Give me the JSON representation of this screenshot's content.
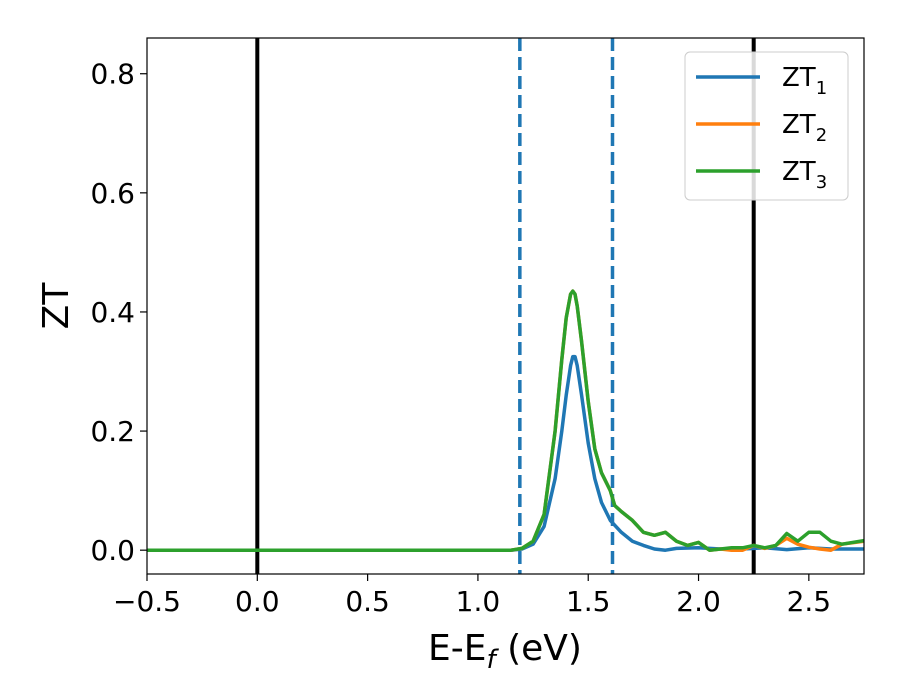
{
  "chart_data": {
    "type": "line",
    "xlabel": "E-E_f (eV)",
    "ylabel": "ZT",
    "xlim": [
      -0.5,
      2.75
    ],
    "ylim": [
      -0.04,
      0.86
    ],
    "x_ticks": [
      -0.5,
      0.0,
      0.5,
      1.0,
      1.5,
      2.0,
      2.5
    ],
    "x_tick_labels": [
      "−0.5",
      "0.0",
      "0.5",
      "1.0",
      "1.5",
      "2.0",
      "2.5"
    ],
    "y_ticks": [
      0.0,
      0.2,
      0.4,
      0.6,
      0.8
    ],
    "y_tick_labels": [
      "0.0",
      "0.2",
      "0.4",
      "0.6",
      "0.8"
    ],
    "grid": false,
    "legend_position": "top-right",
    "vlines": [
      {
        "x": 0.0,
        "style": "solid",
        "color": "#000000"
      },
      {
        "x": 2.25,
        "style": "solid",
        "color": "#000000"
      },
      {
        "x": 1.19,
        "style": "dashed",
        "color": "#1f77b4"
      },
      {
        "x": 1.61,
        "style": "dashed",
        "color": "#1f77b4"
      }
    ],
    "series": [
      {
        "name": "ZT_1",
        "label_main": "ZT",
        "label_sub": "1",
        "color": "#1f77b4",
        "x": [
          -0.5,
          0.0,
          0.5,
          1.0,
          1.15,
          1.2,
          1.25,
          1.3,
          1.35,
          1.38,
          1.4,
          1.42,
          1.43,
          1.44,
          1.45,
          1.47,
          1.5,
          1.53,
          1.56,
          1.6,
          1.65,
          1.7,
          1.75,
          1.8,
          1.85,
          1.9,
          2.0,
          2.1,
          2.2,
          2.3,
          2.4,
          2.5,
          2.6,
          2.75
        ],
        "y": [
          0,
          0,
          0,
          0,
          0.0,
          0.002,
          0.01,
          0.04,
          0.12,
          0.2,
          0.26,
          0.31,
          0.325,
          0.325,
          0.31,
          0.26,
          0.18,
          0.12,
          0.08,
          0.05,
          0.03,
          0.015,
          0.008,
          0.002,
          0.0,
          0.003,
          0.004,
          0.002,
          0.002,
          0.004,
          0.001,
          0.004,
          0.002,
          0.002
        ]
      },
      {
        "name": "ZT_2",
        "label_main": "ZT",
        "label_sub": "2",
        "color": "#ff7f0e",
        "x": [
          -0.5,
          0.0,
          0.5,
          1.0,
          1.15,
          1.2,
          1.25,
          1.3,
          1.35,
          1.38,
          1.4,
          1.42,
          1.43,
          1.44,
          1.45,
          1.47,
          1.5,
          1.53,
          1.56,
          1.6,
          1.62,
          1.65,
          1.7,
          1.75,
          1.8,
          1.85,
          1.9,
          1.95,
          2.0,
          2.05,
          2.1,
          2.15,
          2.2,
          2.25,
          2.3,
          2.35,
          2.4,
          2.45,
          2.5,
          2.55,
          2.6,
          2.65,
          2.75
        ],
        "y": [
          0,
          0,
          0,
          0,
          0.0,
          0.003,
          0.015,
          0.06,
          0.2,
          0.32,
          0.39,
          0.43,
          0.435,
          0.43,
          0.41,
          0.35,
          0.25,
          0.17,
          0.13,
          0.1,
          0.075,
          0.065,
          0.05,
          0.03,
          0.025,
          0.03,
          0.015,
          0.008,
          0.013,
          0.0,
          0.002,
          0.0,
          0.0,
          0.008,
          0.003,
          0.008,
          0.02,
          0.01,
          0.005,
          0.002,
          0.0,
          0.01,
          0.015
        ]
      },
      {
        "name": "ZT_3",
        "label_main": "ZT",
        "label_sub": "3",
        "color": "#2ca02c",
        "x": [
          -0.5,
          0.0,
          0.5,
          1.0,
          1.15,
          1.2,
          1.25,
          1.3,
          1.35,
          1.38,
          1.4,
          1.42,
          1.43,
          1.44,
          1.45,
          1.47,
          1.5,
          1.53,
          1.56,
          1.6,
          1.62,
          1.65,
          1.7,
          1.75,
          1.8,
          1.85,
          1.9,
          1.95,
          2.0,
          2.05,
          2.1,
          2.15,
          2.2,
          2.25,
          2.3,
          2.35,
          2.4,
          2.45,
          2.5,
          2.55,
          2.6,
          2.65,
          2.75
        ],
        "y": [
          0,
          0,
          0,
          0,
          0.0,
          0.003,
          0.015,
          0.06,
          0.2,
          0.32,
          0.39,
          0.43,
          0.435,
          0.43,
          0.41,
          0.35,
          0.25,
          0.17,
          0.13,
          0.1,
          0.075,
          0.065,
          0.05,
          0.03,
          0.025,
          0.03,
          0.015,
          0.008,
          0.013,
          0.0,
          0.002,
          0.004,
          0.004,
          0.008,
          0.004,
          0.008,
          0.028,
          0.015,
          0.03,
          0.03,
          0.015,
          0.01,
          0.016
        ]
      }
    ]
  }
}
